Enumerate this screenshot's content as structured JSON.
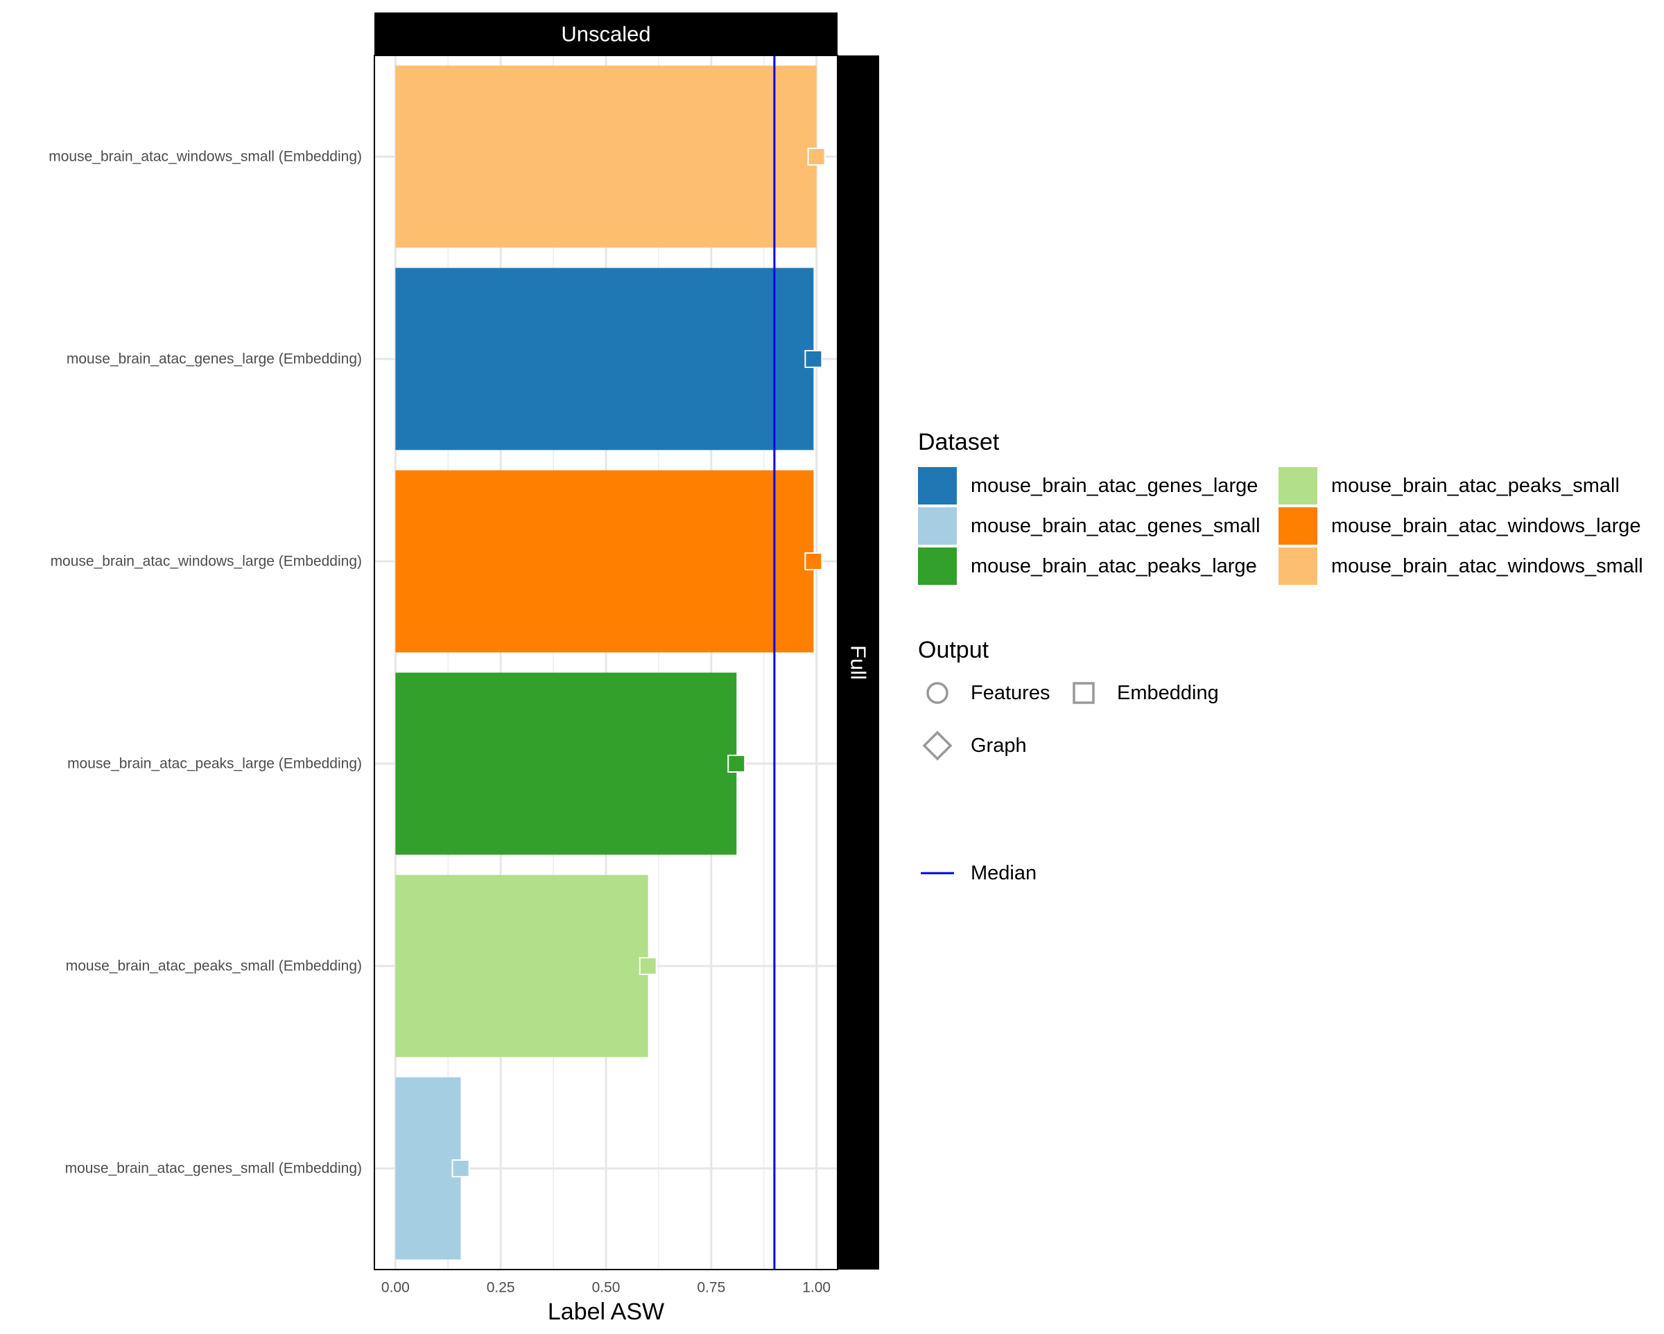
{
  "chart_data": {
    "type": "bar",
    "orientation": "horizontal",
    "facet_column_label": "Unscaled",
    "facet_row_label": "Full",
    "xlabel": "Label ASW",
    "ylabel": "",
    "xlim": [
      -0.05,
      1.05
    ],
    "x_ticks": [
      0.0,
      0.25,
      0.5,
      0.75,
      1.0
    ],
    "x_tick_labels": [
      "0.00",
      "0.25",
      "0.50",
      "0.75",
      "1.00"
    ],
    "grid": true,
    "categories": [
      "mouse_brain_atac_windows_small (Embedding)",
      "mouse_brain_atac_genes_large (Embedding)",
      "mouse_brain_atac_windows_large (Embedding)",
      "mouse_brain_atac_peaks_large (Embedding)",
      "mouse_brain_atac_peaks_small (Embedding)",
      "mouse_brain_atac_genes_small (Embedding)"
    ],
    "datasets": [
      "mouse_brain_atac_windows_small",
      "mouse_brain_atac_genes_large",
      "mouse_brain_atac_windows_large",
      "mouse_brain_atac_peaks_large",
      "mouse_brain_atac_peaks_small",
      "mouse_brain_atac_genes_small"
    ],
    "values": [
      1.0,
      0.993,
      0.993,
      0.81,
      0.6,
      0.155
    ],
    "bar_colors": [
      "#fdbf6f",
      "#1f78b4",
      "#ff7f00",
      "#33a02c",
      "#b2df8a",
      "#a6cee3"
    ],
    "output_type": [
      "Embedding",
      "Embedding",
      "Embedding",
      "Embedding",
      "Embedding",
      "Embedding"
    ],
    "median": 0.9,
    "median_color": "#0000ee",
    "legend_placement": "right",
    "legend_dataset": {
      "title": "Dataset",
      "items": [
        {
          "label": "mouse_brain_atac_genes_large",
          "color": "#1f78b4"
        },
        {
          "label": "mouse_brain_atac_genes_small",
          "color": "#a6cee3"
        },
        {
          "label": "mouse_brain_atac_peaks_large",
          "color": "#33a02c"
        },
        {
          "label": "mouse_brain_atac_peaks_small",
          "color": "#b2df8a"
        },
        {
          "label": "mouse_brain_atac_windows_large",
          "color": "#ff7f00"
        },
        {
          "label": "mouse_brain_atac_windows_small",
          "color": "#fdbf6f"
        }
      ]
    },
    "legend_output": {
      "title": "Output",
      "items": [
        {
          "label": "Features",
          "shape": "circle"
        },
        {
          "label": "Embedding",
          "shape": "square"
        },
        {
          "label": "Graph",
          "shape": "diamond"
        }
      ]
    },
    "legend_median": {
      "label": "Median"
    }
  }
}
